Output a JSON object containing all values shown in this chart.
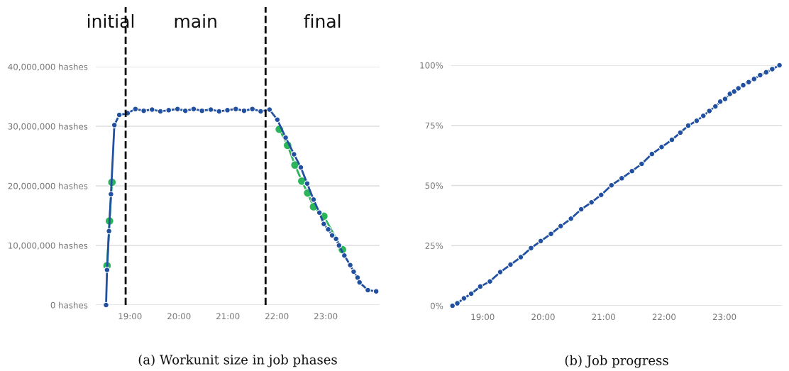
{
  "chart_data": [
    {
      "type": "line",
      "xlabel": "(a) Workunit size in job phases",
      "marker": "circle",
      "line_style": "solid",
      "grid": "y",
      "legend": false,
      "xlim": [
        18.3,
        24.1
      ],
      "ylim": [
        0,
        40000000
      ],
      "xticks": [
        {
          "value": 19,
          "label": "19:00"
        },
        {
          "value": 20,
          "label": "20:00"
        },
        {
          "value": 21,
          "label": "21:00"
        },
        {
          "value": 22,
          "label": "22:00"
        },
        {
          "value": 23,
          "label": "23:00"
        }
      ],
      "yticks": [
        {
          "value": 0,
          "label": "0 hashes"
        },
        {
          "value": 10000000,
          "label": "10,000,000 hashes"
        },
        {
          "value": 20000000,
          "label": "20,000,000 hashes"
        },
        {
          "value": 30000000,
          "label": "30,000,000 hashes"
        },
        {
          "value": 40000000,
          "label": "40,000,000 hashes"
        }
      ],
      "ref_lines": [
        {
          "axis": "x",
          "value": 18.91,
          "color": "#000000",
          "line_style": "dashed"
        },
        {
          "axis": "x",
          "value": 21.77,
          "color": "#000000",
          "line_style": "dashed"
        }
      ],
      "annotations": [
        "initial",
        "main",
        "final"
      ],
      "series": [
        {
          "color": "#2bb55a",
          "x": [
            18.53,
            18.58,
            18.63
          ],
          "values": [
            6600000,
            14100000,
            20600000
          ]
        },
        {
          "color": "#2bb55a",
          "x": [
            22.05,
            22.22,
            22.37,
            22.51,
            22.63,
            22.75,
            22.96,
            23.34
          ],
          "values": [
            29500000,
            26800000,
            23500000,
            20800000,
            18800000,
            16500000,
            14900000,
            9300000
          ]
        },
        {
          "color": "#2150a0",
          "x": [
            18.51,
            18.53,
            18.57,
            18.61,
            18.68,
            18.78,
            18.95,
            19.11,
            19.28,
            19.45,
            19.62,
            19.79,
            19.97,
            20.13,
            20.3,
            20.47,
            20.65,
            20.82,
            20.99,
            21.16,
            21.33,
            21.5,
            21.67,
            21.85,
            22.01,
            22.18,
            22.35,
            22.49,
            22.62,
            22.75,
            22.87,
            22.96,
            23.05,
            23.13,
            23.21,
            23.27,
            23.38,
            23.5,
            23.57,
            23.65,
            23.69,
            23.86,
            24.03
          ],
          "values": [
            0,
            5900000,
            12400000,
            18600000,
            30200000,
            31900000,
            32200000,
            32900000,
            32600000,
            32800000,
            32500000,
            32700000,
            32900000,
            32600000,
            32900000,
            32600000,
            32800000,
            32500000,
            32700000,
            32900000,
            32600000,
            32900000,
            32500000,
            32800000,
            31100000,
            28100000,
            25300000,
            23100000,
            20400000,
            17700000,
            15500000,
            13600000,
            12700000,
            11700000,
            11100000,
            10000000,
            8300000,
            6700000,
            5600000,
            4600000,
            3800000,
            2500000,
            2300000
          ]
        }
      ]
    },
    {
      "type": "line",
      "xlabel": "(b) Job progress",
      "marker": "circle",
      "line_style": "solid",
      "grid": "y",
      "legend": false,
      "xlim": [
        18.48,
        23.95
      ],
      "ylim": [
        0,
        100
      ],
      "xticks": [
        {
          "value": 19,
          "label": "19:00"
        },
        {
          "value": 20,
          "label": "20:00"
        },
        {
          "value": 21,
          "label": "21:00"
        },
        {
          "value": 22,
          "label": "22:00"
        },
        {
          "value": 23,
          "label": "23:00"
        }
      ],
      "yticks": [
        {
          "value": 0,
          "label": "0%"
        },
        {
          "value": 25,
          "label": "25%"
        },
        {
          "value": 50,
          "label": "50%"
        },
        {
          "value": 75,
          "label": "75%"
        },
        {
          "value": 100,
          "label": "100%"
        }
      ],
      "series": [
        {
          "color": "#2150a0",
          "x": [
            18.5,
            18.58,
            18.69,
            18.81,
            18.96,
            19.12,
            19.29,
            19.46,
            19.63,
            19.8,
            19.96,
            20.13,
            20.29,
            20.46,
            20.63,
            20.8,
            20.96,
            21.13,
            21.3,
            21.47,
            21.63,
            21.8,
            21.96,
            22.13,
            22.27,
            22.4,
            22.54,
            22.65,
            22.75,
            22.85,
            22.93,
            23.01,
            23.09,
            23.16,
            23.23,
            23.31,
            23.4,
            23.49,
            23.59,
            23.69,
            23.79,
            23.91
          ],
          "values": [
            0,
            1.0,
            3.1,
            5.0,
            8.0,
            10.1,
            14.0,
            17.1,
            20.2,
            24.0,
            26.9,
            29.9,
            33.1,
            36.2,
            40.1,
            43.0,
            46.1,
            50.1,
            53.0,
            56.0,
            59.0,
            63.1,
            66.0,
            69.0,
            72.0,
            74.9,
            76.9,
            79.0,
            81.0,
            82.9,
            84.9,
            86.0,
            88.1,
            89.1,
            90.4,
            91.7,
            93.0,
            94.3,
            95.9,
            97.1,
            98.4,
            100
          ]
        }
      ]
    }
  ]
}
